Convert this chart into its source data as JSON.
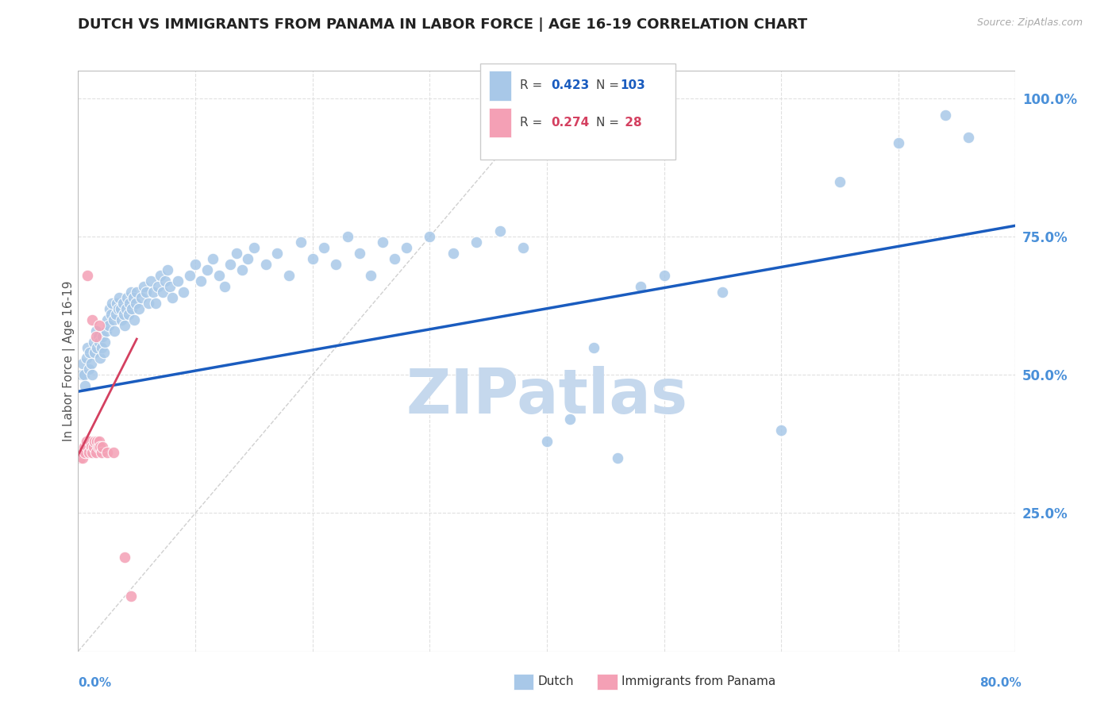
{
  "title": "DUTCH VS IMMIGRANTS FROM PANAMA IN LABOR FORCE | AGE 16-19 CORRELATION CHART",
  "source": "Source: ZipAtlas.com",
  "xlabel_bottom_left": "0.0%",
  "xlabel_bottom_right": "80.0%",
  "ylabel": "In Labor Force | Age 16-19",
  "right_ytick_labels": [
    "100.0%",
    "75.0%",
    "50.0%",
    "25.0%"
  ],
  "right_ytick_values": [
    1.0,
    0.75,
    0.5,
    0.25
  ],
  "watermark": "ZIPatlas",
  "dutch_scatter": [
    [
      0.003,
      0.5
    ],
    [
      0.004,
      0.52
    ],
    [
      0.005,
      0.5
    ],
    [
      0.006,
      0.48
    ],
    [
      0.007,
      0.53
    ],
    [
      0.008,
      0.55
    ],
    [
      0.009,
      0.51
    ],
    [
      0.01,
      0.54
    ],
    [
      0.011,
      0.52
    ],
    [
      0.012,
      0.5
    ],
    [
      0.013,
      0.56
    ],
    [
      0.014,
      0.54
    ],
    [
      0.015,
      0.58
    ],
    [
      0.016,
      0.55
    ],
    [
      0.017,
      0.57
    ],
    [
      0.018,
      0.56
    ],
    [
      0.019,
      0.53
    ],
    [
      0.02,
      0.55
    ],
    [
      0.021,
      0.57
    ],
    [
      0.022,
      0.54
    ],
    [
      0.023,
      0.56
    ],
    [
      0.024,
      0.58
    ],
    [
      0.025,
      0.6
    ],
    [
      0.026,
      0.59
    ],
    [
      0.027,
      0.62
    ],
    [
      0.028,
      0.61
    ],
    [
      0.029,
      0.63
    ],
    [
      0.03,
      0.6
    ],
    [
      0.031,
      0.58
    ],
    [
      0.032,
      0.61
    ],
    [
      0.033,
      0.63
    ],
    [
      0.034,
      0.62
    ],
    [
      0.035,
      0.64
    ],
    [
      0.036,
      0.62
    ],
    [
      0.037,
      0.6
    ],
    [
      0.038,
      0.63
    ],
    [
      0.039,
      0.61
    ],
    [
      0.04,
      0.59
    ],
    [
      0.041,
      0.62
    ],
    [
      0.042,
      0.64
    ],
    [
      0.043,
      0.61
    ],
    [
      0.044,
      0.63
    ],
    [
      0.045,
      0.65
    ],
    [
      0.046,
      0.62
    ],
    [
      0.047,
      0.64
    ],
    [
      0.048,
      0.6
    ],
    [
      0.049,
      0.63
    ],
    [
      0.05,
      0.65
    ],
    [
      0.052,
      0.62
    ],
    [
      0.054,
      0.64
    ],
    [
      0.056,
      0.66
    ],
    [
      0.058,
      0.65
    ],
    [
      0.06,
      0.63
    ],
    [
      0.062,
      0.67
    ],
    [
      0.064,
      0.65
    ],
    [
      0.066,
      0.63
    ],
    [
      0.068,
      0.66
    ],
    [
      0.07,
      0.68
    ],
    [
      0.072,
      0.65
    ],
    [
      0.074,
      0.67
    ],
    [
      0.076,
      0.69
    ],
    [
      0.078,
      0.66
    ],
    [
      0.08,
      0.64
    ],
    [
      0.085,
      0.67
    ],
    [
      0.09,
      0.65
    ],
    [
      0.095,
      0.68
    ],
    [
      0.1,
      0.7
    ],
    [
      0.105,
      0.67
    ],
    [
      0.11,
      0.69
    ],
    [
      0.115,
      0.71
    ],
    [
      0.12,
      0.68
    ],
    [
      0.125,
      0.66
    ],
    [
      0.13,
      0.7
    ],
    [
      0.135,
      0.72
    ],
    [
      0.14,
      0.69
    ],
    [
      0.145,
      0.71
    ],
    [
      0.15,
      0.73
    ],
    [
      0.16,
      0.7
    ],
    [
      0.17,
      0.72
    ],
    [
      0.18,
      0.68
    ],
    [
      0.19,
      0.74
    ],
    [
      0.2,
      0.71
    ],
    [
      0.21,
      0.73
    ],
    [
      0.22,
      0.7
    ],
    [
      0.23,
      0.75
    ],
    [
      0.24,
      0.72
    ],
    [
      0.25,
      0.68
    ],
    [
      0.26,
      0.74
    ],
    [
      0.27,
      0.71
    ],
    [
      0.28,
      0.73
    ],
    [
      0.3,
      0.75
    ],
    [
      0.32,
      0.72
    ],
    [
      0.34,
      0.74
    ],
    [
      0.36,
      0.76
    ],
    [
      0.38,
      0.73
    ],
    [
      0.4,
      0.38
    ],
    [
      0.42,
      0.42
    ],
    [
      0.44,
      0.55
    ],
    [
      0.46,
      0.35
    ],
    [
      0.48,
      0.66
    ],
    [
      0.5,
      0.68
    ],
    [
      0.55,
      0.65
    ],
    [
      0.6,
      0.4
    ],
    [
      0.65,
      0.85
    ],
    [
      0.7,
      0.92
    ],
    [
      0.74,
      0.97
    ],
    [
      0.76,
      0.93
    ]
  ],
  "panama_scatter": [
    [
      0.002,
      0.35
    ],
    [
      0.003,
      0.36
    ],
    [
      0.004,
      0.35
    ],
    [
      0.005,
      0.37
    ],
    [
      0.006,
      0.36
    ],
    [
      0.007,
      0.38
    ],
    [
      0.008,
      0.37
    ],
    [
      0.009,
      0.36
    ],
    [
      0.01,
      0.38
    ],
    [
      0.011,
      0.37
    ],
    [
      0.012,
      0.36
    ],
    [
      0.013,
      0.37
    ],
    [
      0.014,
      0.38
    ],
    [
      0.015,
      0.36
    ],
    [
      0.016,
      0.38
    ],
    [
      0.017,
      0.37
    ],
    [
      0.018,
      0.38
    ],
    [
      0.019,
      0.37
    ],
    [
      0.02,
      0.36
    ],
    [
      0.021,
      0.37
    ],
    [
      0.008,
      0.68
    ],
    [
      0.012,
      0.6
    ],
    [
      0.015,
      0.57
    ],
    [
      0.018,
      0.59
    ],
    [
      0.025,
      0.36
    ],
    [
      0.03,
      0.36
    ],
    [
      0.04,
      0.17
    ],
    [
      0.045,
      0.1
    ]
  ],
  "dutch_line_x": [
    0.0,
    0.8
  ],
  "dutch_line_y": [
    0.47,
    0.77
  ],
  "panama_line_x": [
    0.0,
    0.05
  ],
  "panama_line_y": [
    0.355,
    0.565
  ],
  "diagonal_line_x": [
    0.0,
    0.38
  ],
  "diagonal_line_y": [
    0.0,
    0.95
  ],
  "xlim": [
    0.0,
    0.8
  ],
  "ylim": [
    0.0,
    1.05
  ],
  "dutch_color": "#a8c8e8",
  "panama_color": "#f4a0b5",
  "trend_dutch_color": "#1a5cbf",
  "trend_panama_color": "#d44060",
  "diagonal_color": "#d0d0d0",
  "grid_color": "#e0e0e0",
  "axis_label_color": "#4a90d9",
  "title_color": "#222222",
  "watermark_color": "#c5d8ed",
  "background_color": "#ffffff"
}
